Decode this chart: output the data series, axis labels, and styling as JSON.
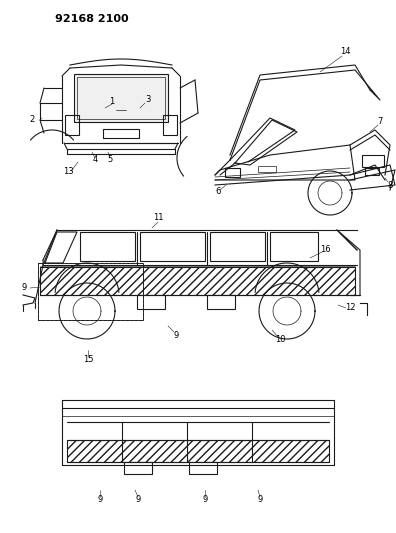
{
  "title_code": "92168 2100",
  "background_color": "#ffffff",
  "line_color": "#1a1a1a",
  "fig_width": 3.96,
  "fig_height": 5.33,
  "dpi": 100
}
